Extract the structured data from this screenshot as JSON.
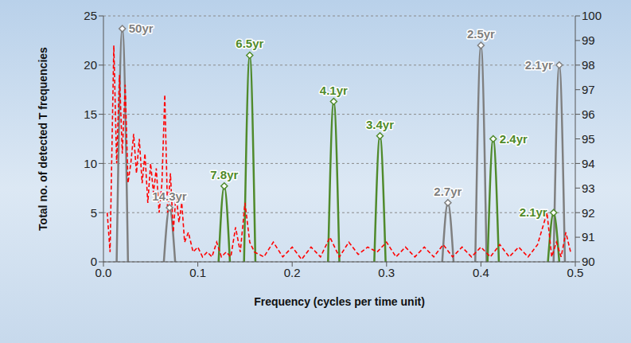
{
  "chart_data": {
    "type": "line",
    "x_label": "Frequency (cycles per time unit)",
    "y_label": "Total no. of detected T frequencies",
    "xlim": [
      0,
      0.5
    ],
    "xticks": [
      {
        "value": 0,
        "label": "0.0"
      },
      0.1,
      0.2,
      0.3,
      0.4,
      0.5
    ],
    "ylim": [
      0,
      25
    ],
    "yticks": [
      0,
      5,
      10,
      15,
      20,
      25
    ],
    "y2lim": [
      90,
      100
    ],
    "y2ticks": [
      90,
      91,
      92,
      93,
      94,
      95,
      96,
      97,
      98,
      99,
      100
    ],
    "grid": true,
    "series": [
      {
        "type": "peaks",
        "color": "#7f7f7f",
        "marker": "diamond",
        "x": [
          0.02,
          0.07,
          0.365,
          0.4,
          0.483
        ],
        "values": [
          23.7,
          5.5,
          6,
          22,
          20
        ],
        "labels": [
          "50yr",
          "14.3yr",
          "2.7yr",
          "2.5yr",
          "2.1yr"
        ]
      },
      {
        "type": "peaks",
        "color": "#4f8a2b",
        "marker": "diamond",
        "x": [
          0.128,
          0.155,
          0.244,
          0.293,
          0.413,
          0.477
        ],
        "values": [
          7.7,
          21,
          16.3,
          12.8,
          12.5,
          5
        ],
        "labels": [
          "7.8yr",
          "6.5yr",
          "4.1yr",
          "3.4yr",
          "2.4yr",
          "2.1yr"
        ]
      },
      {
        "type": "line",
        "axis": "y2",
        "color": "#ff0000",
        "line_style": "dashed",
        "x": [
          0.004,
          0.007,
          0.011,
          0.014,
          0.017,
          0.02,
          0.023,
          0.026,
          0.029,
          0.032,
          0.035,
          0.038,
          0.041,
          0.044,
          0.047,
          0.05,
          0.053,
          0.056,
          0.059,
          0.062,
          0.065,
          0.068,
          0.071,
          0.074,
          0.077,
          0.08,
          0.083,
          0.086,
          0.09,
          0.095,
          0.1,
          0.105,
          0.11,
          0.115,
          0.12,
          0.125,
          0.13,
          0.135,
          0.14,
          0.145,
          0.15,
          0.155,
          0.16,
          0.17,
          0.18,
          0.19,
          0.2,
          0.21,
          0.22,
          0.23,
          0.24,
          0.25,
          0.26,
          0.27,
          0.28,
          0.29,
          0.3,
          0.31,
          0.32,
          0.33,
          0.34,
          0.35,
          0.36,
          0.37,
          0.38,
          0.39,
          0.4,
          0.41,
          0.42,
          0.43,
          0.44,
          0.45,
          0.46,
          0.47,
          0.475,
          0.48,
          0.485,
          0.49,
          0.495
        ],
        "values": [
          92.0,
          90.4,
          98.8,
          94.0,
          97.6,
          94.4,
          97.2,
          93.2,
          94.0,
          95.2,
          93.6,
          95.0,
          93.2,
          94.4,
          92.4,
          94.0,
          92.8,
          93.8,
          92.0,
          93.2,
          96.8,
          92.0,
          93.6,
          91.2,
          92.8,
          91.6,
          92.4,
          90.8,
          91.2,
          90.4,
          90.6,
          90.2,
          90.4,
          90.2,
          90.8,
          90.2,
          90.4,
          90.2,
          91.4,
          90.4,
          92.4,
          90.8,
          90.4,
          90.2,
          90.8,
          90.2,
          90.6,
          90.1,
          90.6,
          90.2,
          91.0,
          90.2,
          90.8,
          90.3,
          90.6,
          90.4,
          90.8,
          90.2,
          90.6,
          90.2,
          90.6,
          90.2,
          90.7,
          90.2,
          90.6,
          90.2,
          90.6,
          90.2,
          90.7,
          90.2,
          90.6,
          90.2,
          90.7,
          92.0,
          90.2,
          90.8,
          90.2,
          91.2,
          90.4
        ]
      }
    ]
  }
}
